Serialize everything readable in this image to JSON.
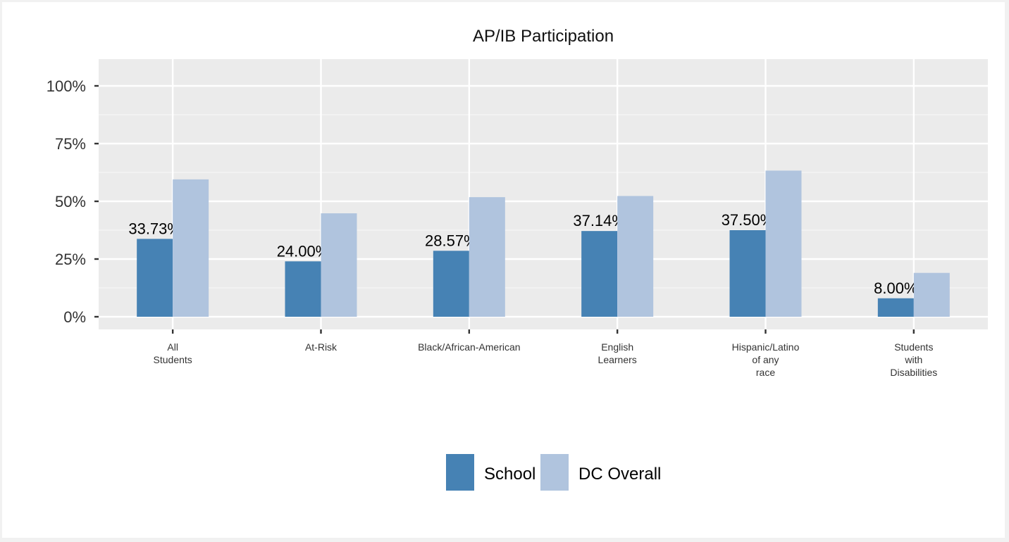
{
  "chart_data": {
    "type": "bar",
    "title": "AP/IB Participation",
    "xlabel": "",
    "ylabel": "",
    "ylim": [
      0,
      105
    ],
    "y_ticks": [
      0,
      25,
      50,
      75,
      100
    ],
    "y_tick_labels": [
      "0%",
      "25%",
      "50%",
      "75%",
      "100%"
    ],
    "categories": [
      [
        "All",
        "Students"
      ],
      [
        "At-Risk"
      ],
      [
        "Black/African-American"
      ],
      [
        "English",
        "Learners"
      ],
      [
        "Hispanic/Latino",
        "of any",
        "race"
      ],
      [
        "Students",
        "with",
        "Disabilities"
      ]
    ],
    "series": [
      {
        "name": "School",
        "color": "#4682b4",
        "values": [
          33.73,
          24.0,
          28.57,
          37.14,
          37.5,
          8.0
        ],
        "labels": [
          "33.73%",
          "24.00%",
          "28.57%",
          "37.14%",
          "37.50%",
          "8.00%"
        ]
      },
      {
        "name": "DC Overall",
        "color": "#b0c4de",
        "values": [
          59.5,
          44.8,
          51.8,
          52.3,
          63.3,
          19.0
        ]
      }
    ],
    "grid": true,
    "panel_color": "#ebebeb",
    "legend_position": "bottom"
  }
}
